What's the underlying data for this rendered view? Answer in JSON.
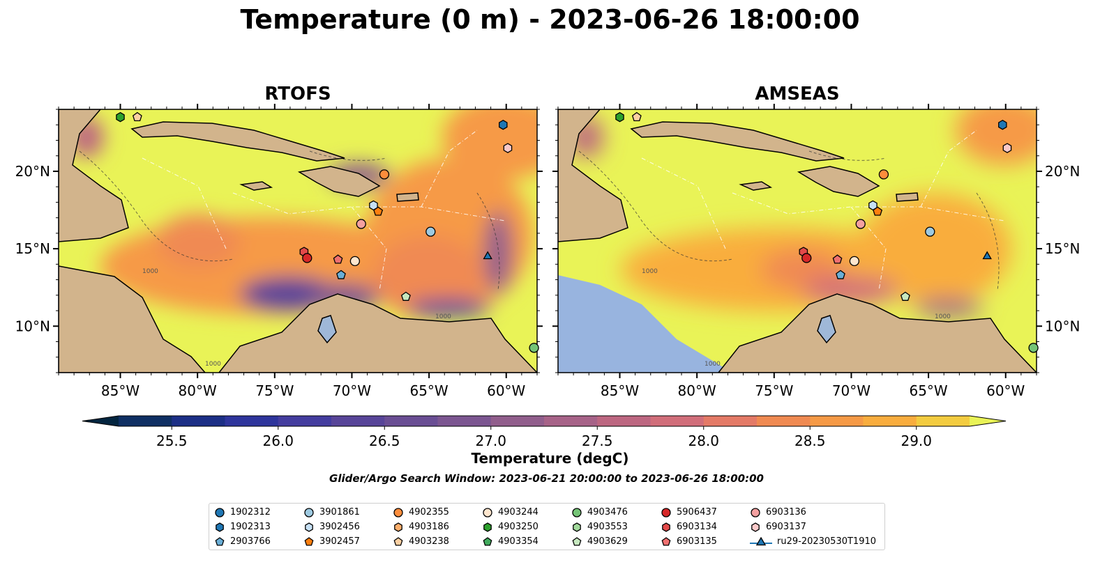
{
  "title": "Temperature (0 m) - 2023-06-26 18:00:00",
  "colorbar": {
    "label": "Temperature (degC)",
    "tick_labels": [
      "25.5",
      "26.0",
      "26.5",
      "27.0",
      "27.5",
      "28.0",
      "28.5",
      "29.0"
    ],
    "level_min": 25.5,
    "level_max": 29.25,
    "level_step": 0.25,
    "colors": [
      "#03253f",
      "#0f2f63",
      "#1c2f86",
      "#2e359c",
      "#443d9f",
      "#584599",
      "#6a4e94",
      "#7c5691",
      "#915e8c",
      "#a76388",
      "#bd6781",
      "#d16e7a",
      "#e47a67",
      "#f08a52",
      "#f69a46",
      "#f9ad3e",
      "#f3cc40",
      "#e9f357"
    ]
  },
  "search_window": "Glider/Argo Search Window: 2023-06-21 20:00:00 to 2023-06-26 18:00:00",
  "chart_data": [
    {
      "type": "heatmap",
      "title": "RTOFS",
      "xlim": [
        -89,
        -58
      ],
      "ylim": [
        7,
        24
      ],
      "xticks": [
        "85°W",
        "80°W",
        "75°W",
        "70°W",
        "65°W",
        "60°W"
      ],
      "yticks": [
        "20°N",
        "15°N",
        "10°N"
      ],
      "yticks_side": "left",
      "variable": "Temperature (degC)",
      "range": [
        25.5,
        29.3
      ],
      "contour_label": "1000"
    },
    {
      "type": "heatmap",
      "title": "AMSEAS",
      "xlim": [
        -89,
        -58
      ],
      "ylim": [
        7,
        24
      ],
      "xticks": [
        "85°W",
        "80°W",
        "75°W",
        "70°W",
        "65°W",
        "60°W"
      ],
      "yticks": [
        "20°N",
        "15°N",
        "10°N"
      ],
      "yticks_side": "right",
      "variable": "Temperature (degC)",
      "range": [
        25.5,
        29.3
      ],
      "contour_label": "1000"
    }
  ],
  "markers": [
    {
      "id": "1902313",
      "lon": -60.2,
      "lat": 23.0
    },
    {
      "id": "4903250",
      "lon": -85.0,
      "lat": 23.5
    },
    {
      "id": "4903238",
      "lon": -83.9,
      "lat": 23.5
    },
    {
      "id": "6903137",
      "lon": -59.9,
      "lat": 21.5
    },
    {
      "id": "4902355",
      "lon": -67.9,
      "lat": 19.8
    },
    {
      "id": "3902456",
      "lon": -68.6,
      "lat": 17.8
    },
    {
      "id": "3902457",
      "lon": -68.3,
      "lat": 17.4
    },
    {
      "id": "6903136",
      "lon": -69.4,
      "lat": 16.6
    },
    {
      "id": "3901861",
      "lon": -64.9,
      "lat": 16.1
    },
    {
      "id": "6903134",
      "lon": -73.1,
      "lat": 14.8
    },
    {
      "id": "5906437",
      "lon": -72.9,
      "lat": 14.4
    },
    {
      "id": "6903135",
      "lon": -70.9,
      "lat": 14.3
    },
    {
      "id": "4903244",
      "lon": -69.8,
      "lat": 14.2
    },
    {
      "id": "ru29-20230530T1910",
      "lon": -61.2,
      "lat": 14.5
    },
    {
      "id": "2903766",
      "lon": -70.7,
      "lat": 13.3
    },
    {
      "id": "4903629",
      "lon": -66.5,
      "lat": 11.9
    },
    {
      "id": "4903476",
      "lon": -58.2,
      "lat": 8.6
    }
  ],
  "legend": [
    {
      "label": "1902312",
      "color": "#1f77b4",
      "shape": "circle"
    },
    {
      "label": "1902313",
      "color": "#1f77b4",
      "shape": "hexagon"
    },
    {
      "label": "2903766",
      "color": "#6aaed6",
      "shape": "pentagon"
    },
    {
      "label": "3901861",
      "color": "#9ecae1",
      "shape": "circle"
    },
    {
      "label": "3902456",
      "color": "#c6e0f5",
      "shape": "hexagon"
    },
    {
      "label": "3902457",
      "color": "#ff7f0e",
      "shape": "pentagon"
    },
    {
      "label": "4902355",
      "color": "#fd8d3c",
      "shape": "circle"
    },
    {
      "label": "4903186",
      "color": "#fdae6b",
      "shape": "hexagon"
    },
    {
      "label": "4903238",
      "color": "#fdd0a2",
      "shape": "pentagon"
    },
    {
      "label": "4903244",
      "color": "#fee6ce",
      "shape": "circle"
    },
    {
      "label": "4903250",
      "color": "#2ca02c",
      "shape": "hexagon"
    },
    {
      "label": "4903354",
      "color": "#41ab5d",
      "shape": "pentagon"
    },
    {
      "label": "4903476",
      "color": "#74c476",
      "shape": "circle"
    },
    {
      "label": "4903553",
      "color": "#a1d99b",
      "shape": "hexagon"
    },
    {
      "label": "4903629",
      "color": "#c7e9c0",
      "shape": "pentagon"
    },
    {
      "label": "5906437",
      "color": "#d62728",
      "shape": "circle"
    },
    {
      "label": "6903134",
      "color": "#e34a4a",
      "shape": "hexagon"
    },
    {
      "label": "6903135",
      "color": "#f07070",
      "shape": "pentagon"
    },
    {
      "label": "6903136",
      "color": "#f4a0a0",
      "shape": "circle"
    },
    {
      "label": "6903137",
      "color": "#fbc9c9",
      "shape": "hexagon"
    },
    {
      "label": "ru29-20230530T1910",
      "color": "#1f77b4",
      "shape": "triangle-line"
    }
  ]
}
